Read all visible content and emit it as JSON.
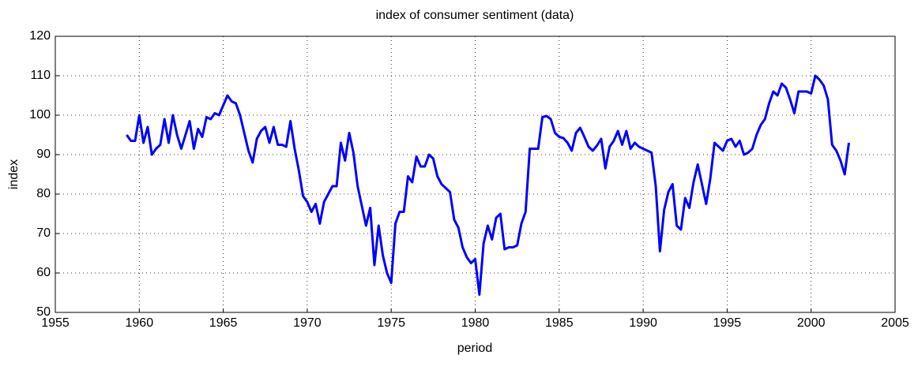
{
  "chart_data": {
    "type": "line",
    "title": "index of consumer sentiment (data)",
    "x_label": "period",
    "y_label": "index",
    "xlim": [
      1955,
      2005
    ],
    "xticks": [
      1955,
      1960,
      1965,
      1970,
      1975,
      1980,
      1985,
      1990,
      1995,
      2000,
      2005
    ],
    "ylim": [
      50,
      120
    ],
    "yticks": [
      50,
      60,
      70,
      80,
      90,
      100,
      110,
      120
    ],
    "grid": true,
    "x": [
      1959.25,
      1959.5,
      1959.75,
      1960,
      1960.25,
      1960.5,
      1960.75,
      1961,
      1961.25,
      1961.5,
      1961.75,
      1962,
      1962.25,
      1962.5,
      1962.75,
      1963,
      1963.25,
      1963.5,
      1963.75,
      1964,
      1964.25,
      1964.5,
      1964.75,
      1965,
      1965.25,
      1965.5,
      1965.75,
      1966,
      1966.25,
      1966.5,
      1966.75,
      1967,
      1967.25,
      1967.5,
      1967.75,
      1968,
      1968.25,
      1968.5,
      1968.75,
      1969,
      1969.25,
      1969.5,
      1969.75,
      1970,
      1970.25,
      1970.5,
      1970.75,
      1971,
      1971.25,
      1971.5,
      1971.75,
      1972,
      1972.25,
      1972.5,
      1972.75,
      1973,
      1973.25,
      1973.5,
      1973.75,
      1974,
      1974.25,
      1974.5,
      1974.75,
      1975,
      1975.25,
      1975.5,
      1975.75,
      1976,
      1976.25,
      1976.5,
      1976.75,
      1977,
      1977.25,
      1977.5,
      1977.75,
      1978,
      1978.25,
      1978.5,
      1978.75,
      1979,
      1979.25,
      1979.5,
      1979.75,
      1980,
      1980.25,
      1980.5,
      1980.75,
      1981,
      1981.25,
      1981.5,
      1981.75,
      1982,
      1982.25,
      1982.5,
      1982.75,
      1983,
      1983.25,
      1983.5,
      1983.75,
      1984,
      1984.25,
      1984.5,
      1984.75,
      1985,
      1985.25,
      1985.5,
      1985.75,
      1986,
      1986.25,
      1986.5,
      1986.75,
      1987,
      1987.25,
      1987.5,
      1987.75,
      1988,
      1988.25,
      1988.5,
      1988.75,
      1989,
      1989.25,
      1989.5,
      1989.75,
      1990,
      1990.25,
      1990.5,
      1990.75,
      1991,
      1991.25,
      1991.5,
      1991.75,
      1992,
      1992.25,
      1992.5,
      1992.75,
      1993,
      1993.25,
      1993.5,
      1993.75,
      1994,
      1994.25,
      1994.5,
      1994.75,
      1995,
      1995.25,
      1995.5,
      1995.75,
      1996,
      1996.25,
      1996.5,
      1996.75,
      1997,
      1997.25,
      1997.5,
      1997.75,
      1998,
      1998.25,
      1998.5,
      1998.75,
      1999,
      1999.25,
      1999.5,
      1999.75,
      2000,
      2000.25,
      2000.5,
      2000.75,
      2001,
      2001.25,
      2001.5,
      2001.75,
      2002,
      2002.25
    ],
    "series": [
      {
        "color": "#0000ff",
        "values": [
          95,
          93.5,
          93.5,
          100,
          93,
          97,
          90,
          91.5,
          92.5,
          99,
          93,
          100,
          95,
          91.5,
          95,
          98.5,
          91.5,
          96.5,
          94.5,
          99.5,
          99,
          100.5,
          100,
          102.5,
          105,
          103.5,
          103,
          100,
          95.5,
          91,
          88,
          94,
          96,
          97,
          93,
          97,
          92.5,
          92.5,
          92,
          98.5,
          91.5,
          86,
          79.5,
          78,
          75.5,
          77.5,
          72.5,
          78,
          80,
          82,
          82,
          93,
          88.5,
          95.5,
          90.5,
          82,
          77,
          72,
          76.5,
          62,
          72,
          64.5,
          60,
          57.5,
          72.5,
          75.5,
          75.5,
          84.5,
          83,
          89.5,
          87,
          87,
          90,
          89,
          84.5,
          82.5,
          81.5,
          80.5,
          73.5,
          71.5,
          66.5,
          64,
          62.5,
          63.5,
          54.5,
          67.5,
          72,
          68.5,
          74,
          75,
          66,
          66.5,
          66.5,
          67,
          72.5,
          75.5,
          91.5,
          91.5,
          91.5,
          99.5,
          99.8,
          99,
          95.5,
          94.5,
          94.2,
          93,
          91,
          95.5,
          96.8,
          94.5,
          92,
          91,
          92.3,
          94,
          86.5,
          92,
          93.5,
          96,
          92.5,
          96,
          91.5,
          93,
          92,
          91.5,
          91,
          90.5,
          82,
          65.5,
          76,
          80.5,
          82.5,
          72,
          71,
          79,
          76.5,
          83,
          87.5,
          82.5,
          77.5,
          84,
          93,
          92,
          91,
          93.5,
          94,
          92,
          93.5,
          90,
          90.5,
          91.5,
          95,
          97.5,
          99,
          103,
          106,
          105,
          108,
          107,
          104,
          100.5,
          106,
          106,
          106,
          105.5,
          110,
          109,
          107.5,
          104,
          92.5,
          91,
          88.5,
          85,
          93
        ]
      }
    ]
  }
}
